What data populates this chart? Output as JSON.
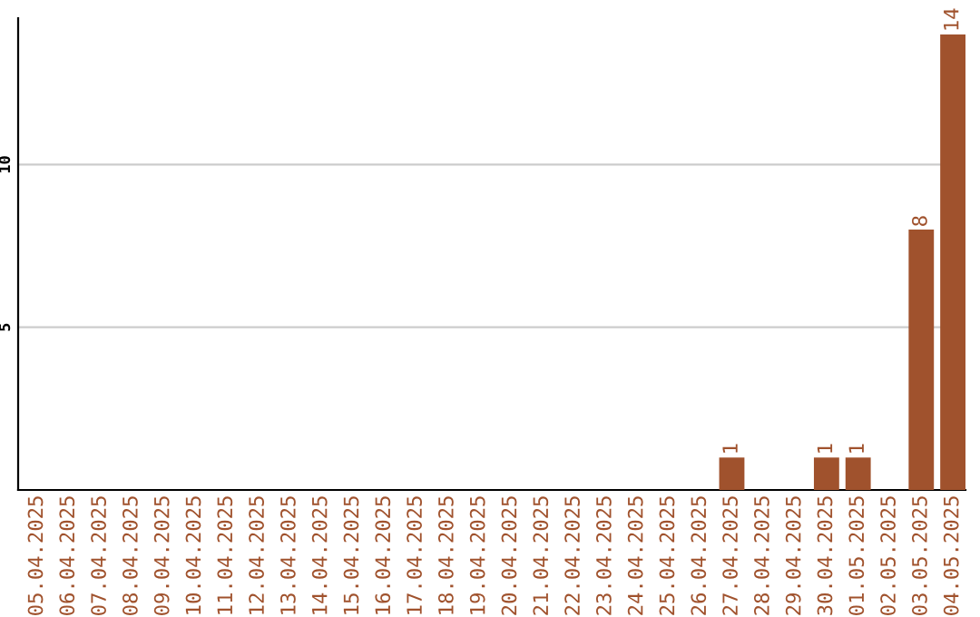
{
  "chart_data": {
    "type": "bar",
    "categories": [
      "05.04.2025",
      "06.04.2025",
      "07.04.2025",
      "08.04.2025",
      "09.04.2025",
      "10.04.2025",
      "11.04.2025",
      "12.04.2025",
      "13.04.2025",
      "14.04.2025",
      "15.04.2025",
      "16.04.2025",
      "17.04.2025",
      "18.04.2025",
      "19.04.2025",
      "20.04.2025",
      "21.04.2025",
      "22.04.2025",
      "23.04.2025",
      "24.04.2025",
      "25.04.2025",
      "26.04.2025",
      "27.04.2025",
      "28.04.2025",
      "29.04.2025",
      "30.04.2025",
      "01.05.2025",
      "02.05.2025",
      "03.05.2025",
      "04.05.2025"
    ],
    "values": [
      0,
      0,
      0,
      0,
      0,
      0,
      0,
      0,
      0,
      0,
      0,
      0,
      0,
      0,
      0,
      0,
      0,
      0,
      0,
      0,
      0,
      0,
      1,
      0,
      0,
      1,
      1,
      0,
      8,
      14
    ],
    "value_labels": [
      null,
      null,
      null,
      null,
      null,
      null,
      null,
      null,
      null,
      null,
      null,
      null,
      null,
      null,
      null,
      null,
      null,
      null,
      null,
      null,
      null,
      null,
      "1",
      null,
      null,
      "1",
      "1",
      null,
      "8",
      "14"
    ],
    "color": "#a0522d",
    "ylim": [
      0,
      14.5
    ],
    "yticks": [
      5,
      10
    ],
    "grid": "y"
  }
}
